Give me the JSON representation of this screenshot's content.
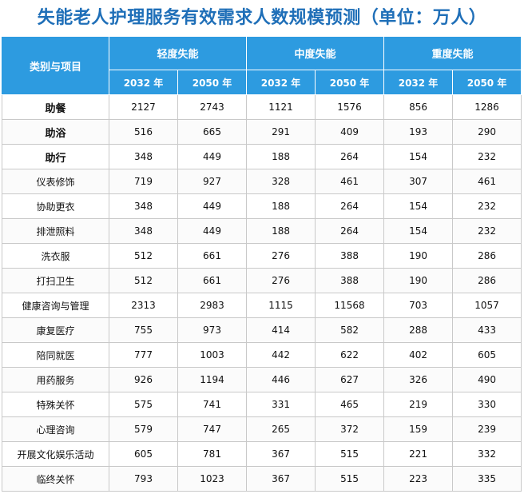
{
  "title": "失能老人护理服务有效需求人数规模预测（单位：万人）",
  "table": {
    "corner_label": "类别与项目",
    "groups": [
      "轻度失能",
      "中度失能",
      "重度失能"
    ],
    "years": [
      "2032 年",
      "2050 年",
      "2032 年",
      "2050 年",
      "2032 年",
      "2050 年"
    ],
    "rows": [
      {
        "item": "助餐",
        "values": [
          "2127",
          "2743",
          "1121",
          "1576",
          "856",
          "1286"
        ]
      },
      {
        "item": "助浴",
        "values": [
          "516",
          "665",
          "291",
          "409",
          "193",
          "290"
        ]
      },
      {
        "item": "助行",
        "values": [
          "348",
          "449",
          "188",
          "264",
          "154",
          "232"
        ]
      },
      {
        "item": "仪表修饰",
        "values": [
          "719",
          "927",
          "328",
          "461",
          "307",
          "461"
        ]
      },
      {
        "item": "协助更衣",
        "values": [
          "348",
          "449",
          "188",
          "264",
          "154",
          "232"
        ]
      },
      {
        "item": "排泄照料",
        "values": [
          "348",
          "449",
          "188",
          "264",
          "154",
          "232"
        ]
      },
      {
        "item": "洗衣服",
        "values": [
          "512",
          "661",
          "276",
          "388",
          "190",
          "286"
        ]
      },
      {
        "item": "打扫卫生",
        "values": [
          "512",
          "661",
          "276",
          "388",
          "190",
          "286"
        ]
      },
      {
        "item": "健康咨询与管理",
        "values": [
          "2313",
          "2983",
          "1115",
          "11568",
          "703",
          "1057"
        ]
      },
      {
        "item": "康复医疗",
        "values": [
          "755",
          "973",
          "414",
          "582",
          "288",
          "433"
        ]
      },
      {
        "item": "陪同就医",
        "values": [
          "777",
          "1003",
          "442",
          "622",
          "402",
          "605"
        ]
      },
      {
        "item": "用药服务",
        "values": [
          "926",
          "1194",
          "446",
          "627",
          "326",
          "490"
        ]
      },
      {
        "item": "特殊关怀",
        "values": [
          "575",
          "741",
          "331",
          "465",
          "219",
          "330"
        ]
      },
      {
        "item": "心理咨询",
        "values": [
          "579",
          "747",
          "265",
          "372",
          "159",
          "239"
        ]
      },
      {
        "item": "开展文化娱乐活动",
        "values": [
          "605",
          "781",
          "367",
          "515",
          "221",
          "332"
        ]
      },
      {
        "item": "临终关怀",
        "values": [
          "793",
          "1023",
          "367",
          "515",
          "223",
          "335"
        ]
      }
    ]
  },
  "colors": {
    "title": "#1f6fb8",
    "header_bg": "#2d9be0",
    "header_text": "#ffffff",
    "grid_line": "#c9c9c9"
  }
}
